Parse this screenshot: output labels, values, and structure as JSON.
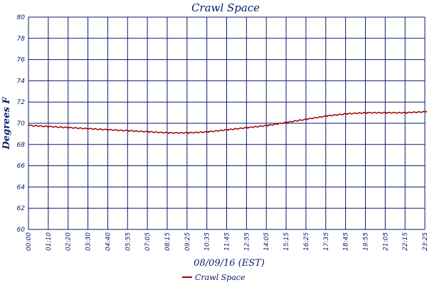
{
  "chart_data": {
    "type": "line",
    "title": "Crawl Space",
    "xlabel": "08/09/16 (EST)",
    "ylabel": "Degrees F",
    "ylim": [
      60,
      80
    ],
    "yticks": [
      60,
      62,
      64,
      66,
      68,
      70,
      72,
      74,
      76,
      78,
      80
    ],
    "xlim_minutes": [
      0,
      1400
    ],
    "x_tick_labels": [
      "00:00",
      "01:10",
      "02:20",
      "03:30",
      "04:40",
      "05:55",
      "07:05",
      "08:15",
      "09:25",
      "10:35",
      "11:45",
      "12:55",
      "14:05",
      "15:15",
      "16:25",
      "17:35",
      "18:45",
      "19:55",
      "21:05",
      "22:15",
      "23:25"
    ],
    "grid": true,
    "legend_position": "bottom",
    "colors": {
      "line": "#a00000",
      "grid": "#0a1a6b",
      "text": "#0a1a6b"
    },
    "series": [
      {
        "name": "Crawl Space",
        "x": [
          "00:00",
          "01:10",
          "02:20",
          "03:30",
          "04:40",
          "05:55",
          "07:05",
          "08:15",
          "09:25",
          "10:35",
          "11:45",
          "12:55",
          "14:05",
          "15:15",
          "16:25",
          "17:35",
          "18:45",
          "19:55",
          "21:05",
          "22:15",
          "23:25"
        ],
        "values": [
          69.8,
          69.7,
          69.6,
          69.5,
          69.4,
          69.3,
          69.2,
          69.1,
          69.1,
          69.2,
          69.4,
          69.6,
          69.8,
          70.1,
          70.4,
          70.7,
          70.9,
          71.0,
          71.0,
          71.0,
          71.1
        ]
      }
    ]
  }
}
